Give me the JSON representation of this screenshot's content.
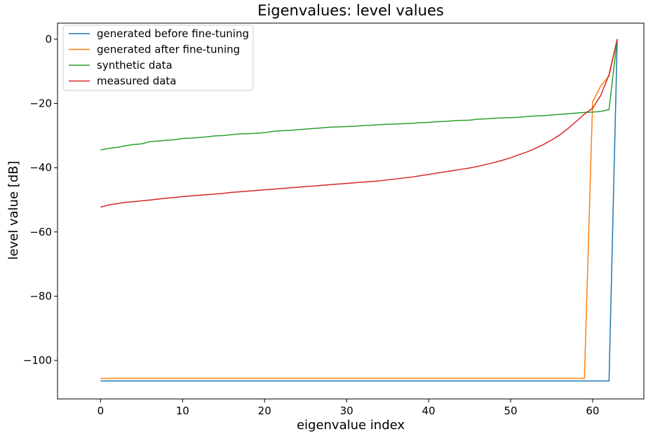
{
  "chart_data": {
    "type": "line",
    "title": "Eigenvalues: level values",
    "xlabel": "eigenvalue index",
    "ylabel": "level value [dB]",
    "xlim": [
      -5.25,
      66.25
    ],
    "ylim": [
      -112,
      5
    ],
    "xticks": [
      0,
      10,
      20,
      30,
      40,
      50,
      60
    ],
    "yticks": [
      0,
      -20,
      -40,
      -60,
      -80,
      -100
    ],
    "xtick_labels": [
      "0",
      "10",
      "20",
      "30",
      "40",
      "50",
      "60"
    ],
    "ytick_labels": [
      "0",
      "−20",
      "−40",
      "−60",
      "−80",
      "−100"
    ],
    "grid": false,
    "legend_position": "top-left",
    "x": [
      0,
      1,
      2,
      3,
      4,
      5,
      6,
      7,
      8,
      9,
      10,
      11,
      12,
      13,
      14,
      15,
      16,
      17,
      18,
      19,
      20,
      21,
      22,
      23,
      24,
      25,
      26,
      27,
      28,
      29,
      30,
      31,
      32,
      33,
      34,
      35,
      36,
      37,
      38,
      39,
      40,
      41,
      42,
      43,
      44,
      45,
      46,
      47,
      48,
      49,
      50,
      51,
      52,
      53,
      54,
      55,
      56,
      57,
      58,
      59,
      60,
      61,
      62,
      63
    ],
    "series": [
      {
        "name": "generated before fine-tuning",
        "color": "#1f77b4",
        "values": [
          -106.4,
          -106.4,
          -106.4,
          -106.4,
          -106.4,
          -106.4,
          -106.4,
          -106.4,
          -106.4,
          -106.4,
          -106.4,
          -106.4,
          -106.4,
          -106.4,
          -106.4,
          -106.4,
          -106.4,
          -106.4,
          -106.4,
          -106.4,
          -106.4,
          -106.4,
          -106.4,
          -106.4,
          -106.4,
          -106.4,
          -106.4,
          -106.4,
          -106.4,
          -106.4,
          -106.4,
          -106.4,
          -106.4,
          -106.4,
          -106.4,
          -106.4,
          -106.4,
          -106.4,
          -106.4,
          -106.4,
          -106.4,
          -106.4,
          -106.4,
          -106.4,
          -106.4,
          -106.4,
          -106.4,
          -106.4,
          -106.4,
          -106.4,
          -106.4,
          -106.4,
          -106.4,
          -106.4,
          -106.4,
          -106.4,
          -106.4,
          -106.4,
          -106.4,
          -106.4,
          -106.4,
          -106.4,
          -106.4,
          0
        ]
      },
      {
        "name": "generated after fine-tuning",
        "color": "#ff7f0e",
        "values": [
          -105.6,
          -105.6,
          -105.6,
          -105.6,
          -105.6,
          -105.6,
          -105.6,
          -105.6,
          -105.6,
          -105.6,
          -105.6,
          -105.6,
          -105.6,
          -105.6,
          -105.6,
          -105.6,
          -105.6,
          -105.6,
          -105.6,
          -105.6,
          -105.6,
          -105.6,
          -105.6,
          -105.6,
          -105.6,
          -105.6,
          -105.6,
          -105.6,
          -105.6,
          -105.6,
          -105.6,
          -105.6,
          -105.6,
          -105.6,
          -105.6,
          -105.6,
          -105.6,
          -105.6,
          -105.6,
          -105.6,
          -105.6,
          -105.6,
          -105.6,
          -105.6,
          -105.6,
          -105.6,
          -105.6,
          -105.6,
          -105.6,
          -105.6,
          -105.6,
          -105.6,
          -105.6,
          -105.6,
          -105.6,
          -105.6,
          -105.6,
          -105.6,
          -105.6,
          -105.6,
          -19.5,
          -14.5,
          -11.5,
          0
        ]
      },
      {
        "name": "synthetic data",
        "color": "#2ca02c",
        "values": [
          -34.5,
          -34.0,
          -33.7,
          -33.2,
          -32.8,
          -32.6,
          -31.9,
          -31.7,
          -31.5,
          -31.3,
          -30.9,
          -30.8,
          -30.6,
          -30.4,
          -30.1,
          -30.0,
          -29.7,
          -29.5,
          -29.4,
          -29.3,
          -29.1,
          -28.7,
          -28.5,
          -28.4,
          -28.2,
          -28.0,
          -27.8,
          -27.6,
          -27.4,
          -27.3,
          -27.2,
          -27.1,
          -26.9,
          -26.8,
          -26.6,
          -26.5,
          -26.4,
          -26.3,
          -26.2,
          -26.0,
          -25.9,
          -25.7,
          -25.6,
          -25.4,
          -25.3,
          -25.2,
          -24.9,
          -24.8,
          -24.6,
          -24.5,
          -24.4,
          -24.3,
          -24.1,
          -23.9,
          -23.8,
          -23.6,
          -23.4,
          -23.2,
          -23.0,
          -22.8,
          -22.7,
          -22.5,
          -21.9,
          0
        ]
      },
      {
        "name": "measured data",
        "color": "#d62728",
        "values": [
          -52.3,
          -51.6,
          -51.2,
          -50.8,
          -50.6,
          -50.3,
          -50.1,
          -49.8,
          -49.5,
          -49.3,
          -49.0,
          -48.8,
          -48.6,
          -48.4,
          -48.2,
          -48.0,
          -47.7,
          -47.5,
          -47.3,
          -47.1,
          -46.9,
          -46.7,
          -46.5,
          -46.3,
          -46.1,
          -45.9,
          -45.7,
          -45.5,
          -45.3,
          -45.1,
          -44.9,
          -44.7,
          -44.5,
          -44.3,
          -44.1,
          -43.8,
          -43.5,
          -43.2,
          -42.9,
          -42.5,
          -42.1,
          -41.7,
          -41.3,
          -40.9,
          -40.5,
          -40.1,
          -39.6,
          -39.0,
          -38.4,
          -37.7,
          -36.9,
          -36.0,
          -35.1,
          -34.0,
          -32.8,
          -31.4,
          -29.8,
          -27.8,
          -25.6,
          -23.3,
          -21.5,
          -17.5,
          -11.0,
          0
        ]
      }
    ]
  }
}
